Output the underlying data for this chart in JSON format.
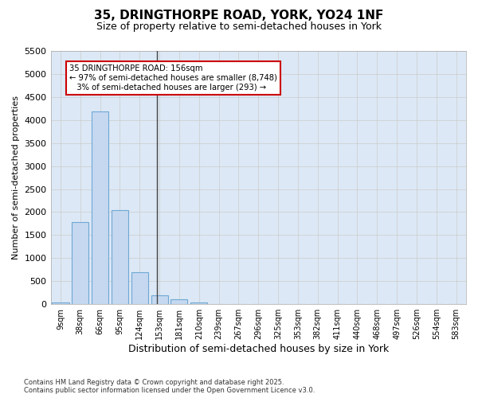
{
  "title_line1": "35, DRINGTHORPE ROAD, YORK, YO24 1NF",
  "title_line2": "Size of property relative to semi-detached houses in York",
  "xlabel": "Distribution of semi-detached houses by size in York",
  "ylabel": "Number of semi-detached properties",
  "bins": [
    "9sqm",
    "38sqm",
    "66sqm",
    "95sqm",
    "124sqm",
    "153sqm",
    "181sqm",
    "210sqm",
    "239sqm",
    "267sqm",
    "296sqm",
    "325sqm",
    "353sqm",
    "382sqm",
    "411sqm",
    "440sqm",
    "468sqm",
    "497sqm",
    "526sqm",
    "554sqm",
    "583sqm"
  ],
  "values": [
    30,
    1780,
    4180,
    2050,
    700,
    200,
    110,
    30,
    0,
    0,
    0,
    0,
    0,
    0,
    0,
    0,
    0,
    0,
    0,
    0,
    0
  ],
  "bar_color": "#c5d8f0",
  "bar_edge_color": "#6fa8d4",
  "annotation_title": "35 DRINGTHORPE ROAD: 156sqm",
  "annotation_line1": "← 97% of semi-detached houses are smaller (8,748)",
  "annotation_line2": "3% of semi-detached houses are larger (293) →",
  "annotation_box_color": "#ffffff",
  "annotation_box_edge": "#cc0000",
  "ylim": [
    0,
    5500
  ],
  "yticks": [
    0,
    500,
    1000,
    1500,
    2000,
    2500,
    3000,
    3500,
    4000,
    4500,
    5000,
    5500
  ],
  "background_color": "#ffffff",
  "grid_color": "#cccccc",
  "footnote_line1": "Contains HM Land Registry data © Crown copyright and database right 2025.",
  "footnote_line2": "Contains public sector information licensed under the Open Government Licence v3.0."
}
